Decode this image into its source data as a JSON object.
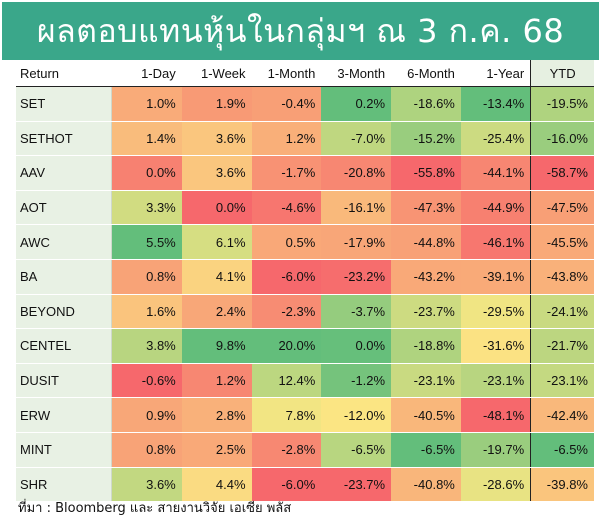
{
  "title": "ผลตอบแทนหุ้นในกลุ่มฯ ณ 3 ก.ค. 68",
  "source": "ที่มา : Bloomberg และ สายงานวิจัย เอเซีย พลัส",
  "chart_data": {
    "type": "table",
    "header_label": "Return",
    "columns": [
      "1-Day",
      "1-Week",
      "1-Month",
      "3-Month",
      "6-Month",
      "1-Year",
      "YTD"
    ],
    "rows": [
      {
        "name": "SET",
        "values": [
          "1.0%",
          "1.9%",
          "-0.4%",
          "0.2%",
          "-18.6%",
          "-13.4%",
          "-19.5%"
        ]
      },
      {
        "name": "SETHOT",
        "values": [
          "1.4%",
          "3.6%",
          "1.2%",
          "-7.0%",
          "-15.2%",
          "-25.4%",
          "-16.0%"
        ]
      },
      {
        "name": "AAV",
        "values": [
          "0.0%",
          "3.6%",
          "-1.7%",
          "-20.8%",
          "-55.8%",
          "-44.1%",
          "-58.7%"
        ]
      },
      {
        "name": "AOT",
        "values": [
          "3.3%",
          "0.0%",
          "-4.6%",
          "-16.1%",
          "-47.3%",
          "-44.9%",
          "-47.5%"
        ]
      },
      {
        "name": "AWC",
        "values": [
          "5.5%",
          "6.1%",
          "0.5%",
          "-17.9%",
          "-44.8%",
          "-46.1%",
          "-45.5%"
        ]
      },
      {
        "name": "BA",
        "values": [
          "0.8%",
          "4.1%",
          "-6.0%",
          "-23.2%",
          "-43.2%",
          "-39.1%",
          "-43.8%"
        ]
      },
      {
        "name": "BEYOND",
        "values": [
          "1.6%",
          "2.4%",
          "-2.3%",
          "-3.7%",
          "-23.7%",
          "-29.5%",
          "-24.1%"
        ]
      },
      {
        "name": "CENTEL",
        "values": [
          "3.8%",
          "9.8%",
          "20.0%",
          "0.0%",
          "-18.8%",
          "-31.6%",
          "-21.7%"
        ]
      },
      {
        "name": "DUSIT",
        "values": [
          "-0.6%",
          "1.2%",
          "12.4%",
          "-1.2%",
          "-23.1%",
          "-23.1%",
          "-23.1%"
        ]
      },
      {
        "name": "ERW",
        "values": [
          "0.9%",
          "2.8%",
          "7.8%",
          "-12.0%",
          "-40.5%",
          "-48.1%",
          "-42.4%"
        ]
      },
      {
        "name": "MINT",
        "values": [
          "0.8%",
          "2.5%",
          "-2.8%",
          "-6.5%",
          "-6.5%",
          "-19.7%",
          "-6.5%"
        ]
      },
      {
        "name": "SHR",
        "values": [
          "3.6%",
          "4.4%",
          "-6.0%",
          "-23.7%",
          "-40.8%",
          "-28.6%",
          "-39.8%"
        ]
      }
    ]
  }
}
